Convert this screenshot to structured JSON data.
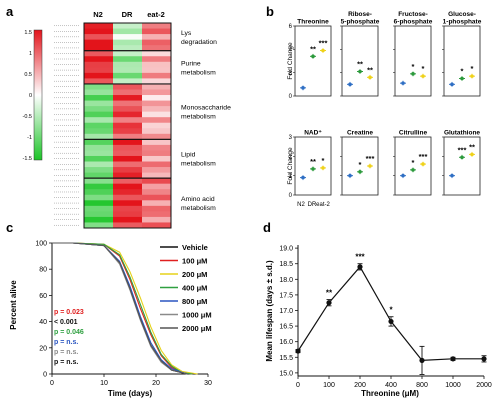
{
  "panels": {
    "a": {
      "label": "a",
      "columns": [
        "N2",
        "DR",
        "eat-2"
      ],
      "colorbar": {
        "ticks": [
          "1.5",
          "1",
          "0.5",
          "0",
          "-0.5",
          "-1",
          "-1.5"
        ],
        "high_color": "#e3141c",
        "low_color": "#1cc428"
      },
      "groups": [
        {
          "label": "Lys degradation",
          "rows": 5,
          "pattern": [
            0.95,
            -0.25,
            0.55
          ]
        },
        {
          "label": "Purine metabolism",
          "rows": 6,
          "pattern": [
            0.9,
            -0.45,
            0.35
          ]
        },
        {
          "label": "Monosaccharide metabolism",
          "rows": 10,
          "pattern": [
            -0.6,
            0.75,
            0.3
          ]
        },
        {
          "label": "Lipid metabolism",
          "rows": 7,
          "pattern": [
            -0.55,
            0.8,
            0.45
          ]
        },
        {
          "label": "Amino acid metabolism",
          "rows": 9,
          "pattern": [
            -0.75,
            0.9,
            0.55
          ]
        }
      ]
    },
    "b": {
      "label": "b",
      "ylabel": "Fold Change",
      "xticklabels": [
        "N2",
        "DR",
        "eat-2"
      ],
      "colors": [
        "#2f6fc4",
        "#2c9a3c",
        "#efd21a"
      ],
      "rows": [
        {
          "ymax": 6,
          "ticks": [
            "0",
            "2",
            "4",
            "6"
          ],
          "items": [
            {
              "title": "Threonine",
              "values": [
                0.7,
                3.4,
                3.9
              ],
              "stars": [
                "",
                "**",
                "***"
              ]
            },
            {
              "title": "Ribose-5-phosphate",
              "values": [
                1.0,
                2.1,
                1.6
              ],
              "stars": [
                "",
                "**",
                "**"
              ]
            },
            {
              "title": "Fructose-6-phosphate",
              "values": [
                1.1,
                1.9,
                1.7
              ],
              "stars": [
                "",
                "*",
                "*"
              ]
            },
            {
              "title": "Glucose-1-phosphate",
              "values": [
                1.0,
                1.5,
                1.7
              ],
              "stars": [
                "",
                "*",
                "*"
              ]
            }
          ]
        },
        {
          "ymax": 3,
          "ticks": [
            "0",
            "1",
            "2",
            "3"
          ],
          "items": [
            {
              "title": "NAD⁺",
              "values": [
                0.9,
                1.35,
                1.4
              ],
              "stars": [
                "",
                "**",
                "*"
              ]
            },
            {
              "title": "Creatine",
              "values": [
                1.0,
                1.2,
                1.5
              ],
              "stars": [
                "",
                "*",
                "***"
              ]
            },
            {
              "title": "Citrulline",
              "values": [
                1.0,
                1.3,
                1.6
              ],
              "stars": [
                "",
                "*",
                "***"
              ]
            },
            {
              "title": "Glutathione",
              "values": [
                1.0,
                1.95,
                2.1
              ],
              "stars": [
                "",
                "***",
                "**"
              ]
            }
          ]
        }
      ]
    },
    "c": {
      "label": "c",
      "xlabel": "Time (days)",
      "ylabel": "Percent alive",
      "xticks": [
        "0",
        "10",
        "20",
        "30"
      ],
      "yticks": [
        "0",
        "20",
        "40",
        "60",
        "80",
        "100"
      ],
      "legend": [
        {
          "name": "Vehicle",
          "color": "#111111"
        },
        {
          "name": "100 μM",
          "color": "#e02020"
        },
        {
          "name": "200 μM",
          "color": "#e6d21a"
        },
        {
          "name": "400 μM",
          "color": "#2fa040"
        },
        {
          "name": "800 μM",
          "color": "#2a55c0"
        },
        {
          "name": "1000 μM",
          "color": "#8a8a8a"
        },
        {
          "name": "2000 μM",
          "color": "#555555"
        }
      ],
      "pvalues": [
        {
          "text": "p = 0.023",
          "color": "#e02020"
        },
        {
          "text": "< 0.001",
          "color": "#111111"
        },
        {
          "text": "p = 0.046",
          "color": "#2fa040"
        },
        {
          "text": "p = n.s.",
          "color": "#2a55c0"
        },
        {
          "text": "p = n.s.",
          "color": "#8a8a8a"
        },
        {
          "text": "p = n.s.",
          "color": "#111111"
        }
      ]
    },
    "d": {
      "label": "d",
      "xlabel": "Threonine (μM)",
      "ylabel": "Mean lifespan (days ± s.d.)",
      "yticks": [
        "15.0",
        "15.5",
        "16.0",
        "16.5",
        "17.0",
        "17.5",
        "18.0",
        "18.5",
        "19.0"
      ]
    }
  },
  "chart_data": [
    {
      "type": "heatmap",
      "panel": "a",
      "columns": [
        "N2",
        "DR",
        "eat-2"
      ],
      "row_groups": [
        "Lys degradation",
        "Purine metabolism",
        "Monosaccharide metabolism",
        "Lipid metabolism",
        "Amino acid metabolism"
      ],
      "color_range": [
        -1.5,
        1.5
      ]
    },
    {
      "type": "scatter",
      "panel": "b",
      "categories": [
        "N2",
        "DR",
        "eat-2"
      ],
      "series": [
        {
          "name": "Threonine",
          "values": [
            0.7,
            3.4,
            3.9
          ]
        },
        {
          "name": "Ribose-5-phosphate",
          "values": [
            1.0,
            2.1,
            1.6
          ]
        },
        {
          "name": "Fructose-6-phosphate",
          "values": [
            1.1,
            1.9,
            1.7
          ]
        },
        {
          "name": "Glucose-1-phosphate",
          "values": [
            1.0,
            1.5,
            1.7
          ]
        },
        {
          "name": "NAD⁺",
          "values": [
            0.9,
            1.35,
            1.4
          ]
        },
        {
          "name": "Creatine",
          "values": [
            1.0,
            1.2,
            1.5
          ]
        },
        {
          "name": "Citrulline",
          "values": [
            1.0,
            1.3,
            1.6
          ]
        },
        {
          "name": "Glutathione",
          "values": [
            1.0,
            1.95,
            2.1
          ]
        }
      ],
      "ylabel": "Fold Change"
    },
    {
      "type": "line",
      "panel": "c",
      "xlabel": "Time (days)",
      "ylabel": "Percent alive",
      "xlim": [
        0,
        30
      ],
      "ylim": [
        0,
        100
      ],
      "series": [
        {
          "name": "Vehicle",
          "x": [
            0,
            4,
            10,
            13,
            15,
            17,
            19,
            21,
            23,
            26
          ],
          "y": [
            100,
            100,
            98,
            85,
            65,
            42,
            22,
            10,
            3,
            0
          ]
        },
        {
          "name": "100 μM",
          "x": [
            0,
            4,
            10,
            13,
            15,
            17,
            19,
            21,
            23,
            25,
            27
          ],
          "y": [
            100,
            100,
            99,
            90,
            72,
            50,
            30,
            14,
            5,
            1,
            0
          ]
        },
        {
          "name": "200 μM",
          "x": [
            0,
            4,
            10,
            13,
            15,
            17,
            19,
            21,
            23,
            25,
            28
          ],
          "y": [
            100,
            100,
            99,
            93,
            78,
            58,
            36,
            18,
            7,
            2,
            0
          ]
        },
        {
          "name": "400 μM",
          "x": [
            0,
            4,
            10,
            13,
            15,
            17,
            19,
            21,
            23,
            25,
            27
          ],
          "y": [
            100,
            100,
            99,
            91,
            74,
            53,
            32,
            15,
            6,
            1,
            0
          ]
        },
        {
          "name": "800 μM",
          "x": [
            0,
            4,
            10,
            13,
            15,
            17,
            19,
            21,
            23,
            26
          ],
          "y": [
            100,
            100,
            98,
            86,
            67,
            44,
            24,
            11,
            4,
            0
          ]
        },
        {
          "name": "1000 μM",
          "x": [
            0,
            4,
            10,
            13,
            15,
            17,
            19,
            21,
            23,
            26
          ],
          "y": [
            100,
            100,
            98,
            84,
            64,
            41,
            21,
            9,
            3,
            0
          ]
        },
        {
          "name": "2000 μM",
          "x": [
            0,
            4,
            10,
            13,
            15,
            17,
            19,
            21,
            23,
            26
          ],
          "y": [
            100,
            100,
            98,
            85,
            65,
            42,
            22,
            10,
            3,
            0
          ]
        }
      ]
    },
    {
      "type": "line",
      "panel": "d",
      "xlabel": "Threonine (μM)",
      "ylabel": "Mean lifespan (days ± s.d.)",
      "categories": [
        "0",
        "100",
        "200",
        "400",
        "800",
        "1000",
        "2000"
      ],
      "values": [
        15.7,
        17.25,
        18.4,
        16.65,
        15.4,
        15.45,
        15.45
      ],
      "errors": [
        0.05,
        0.1,
        0.1,
        0.15,
        0.45,
        0.05,
        0.1
      ],
      "significance": [
        "",
        "**",
        "***",
        "*",
        "",
        "",
        ""
      ],
      "ylim": [
        14.9,
        19.1
      ]
    }
  ]
}
